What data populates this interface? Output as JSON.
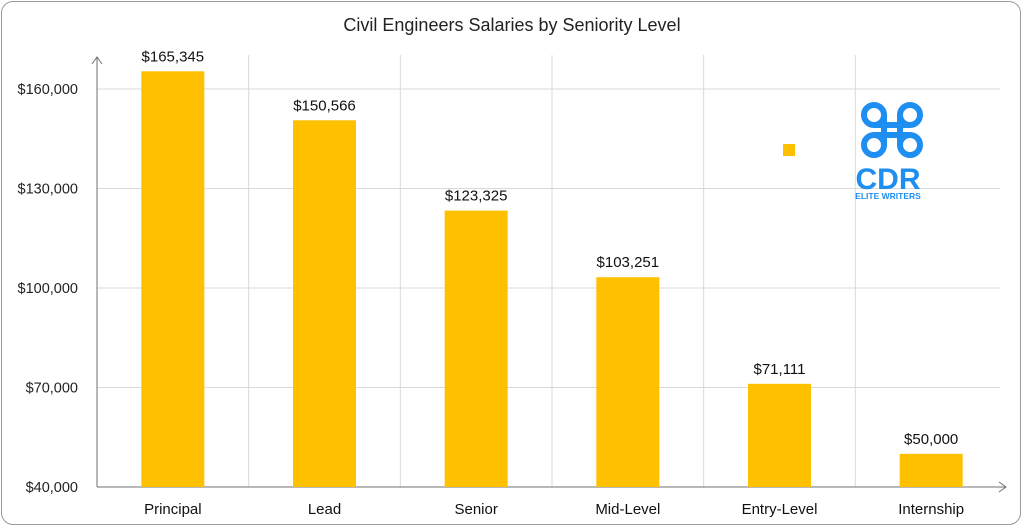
{
  "chart_data": {
    "type": "bar",
    "title": "Civil Engineers Salaries by Seniority Level",
    "xlabel": "",
    "ylabel": "",
    "categories": [
      "Principal",
      "Lead",
      "Senior",
      "Mid-Level",
      "Entry-Level",
      "Internship"
    ],
    "values": [
      165345,
      150566,
      123325,
      103251,
      71111,
      50000
    ],
    "data_labels": [
      "$165,345",
      "$150,566",
      "$123,325",
      "$103,251",
      "$71,111",
      "$50,000"
    ],
    "y_ticks": [
      40000,
      70000,
      100000,
      130000,
      160000
    ],
    "y_tick_labels": [
      "$40,000",
      "$70,000",
      "$100,000",
      "$130,000",
      "$160,000"
    ],
    "ylim": [
      40000,
      170000
    ],
    "grid": true,
    "legend": "none",
    "bar_color": "#FFC000"
  },
  "logo": {
    "text": "CDR",
    "subtext": "ELITE WRITERS",
    "color": "#1F8EF1",
    "icon": "command-key-icon"
  }
}
